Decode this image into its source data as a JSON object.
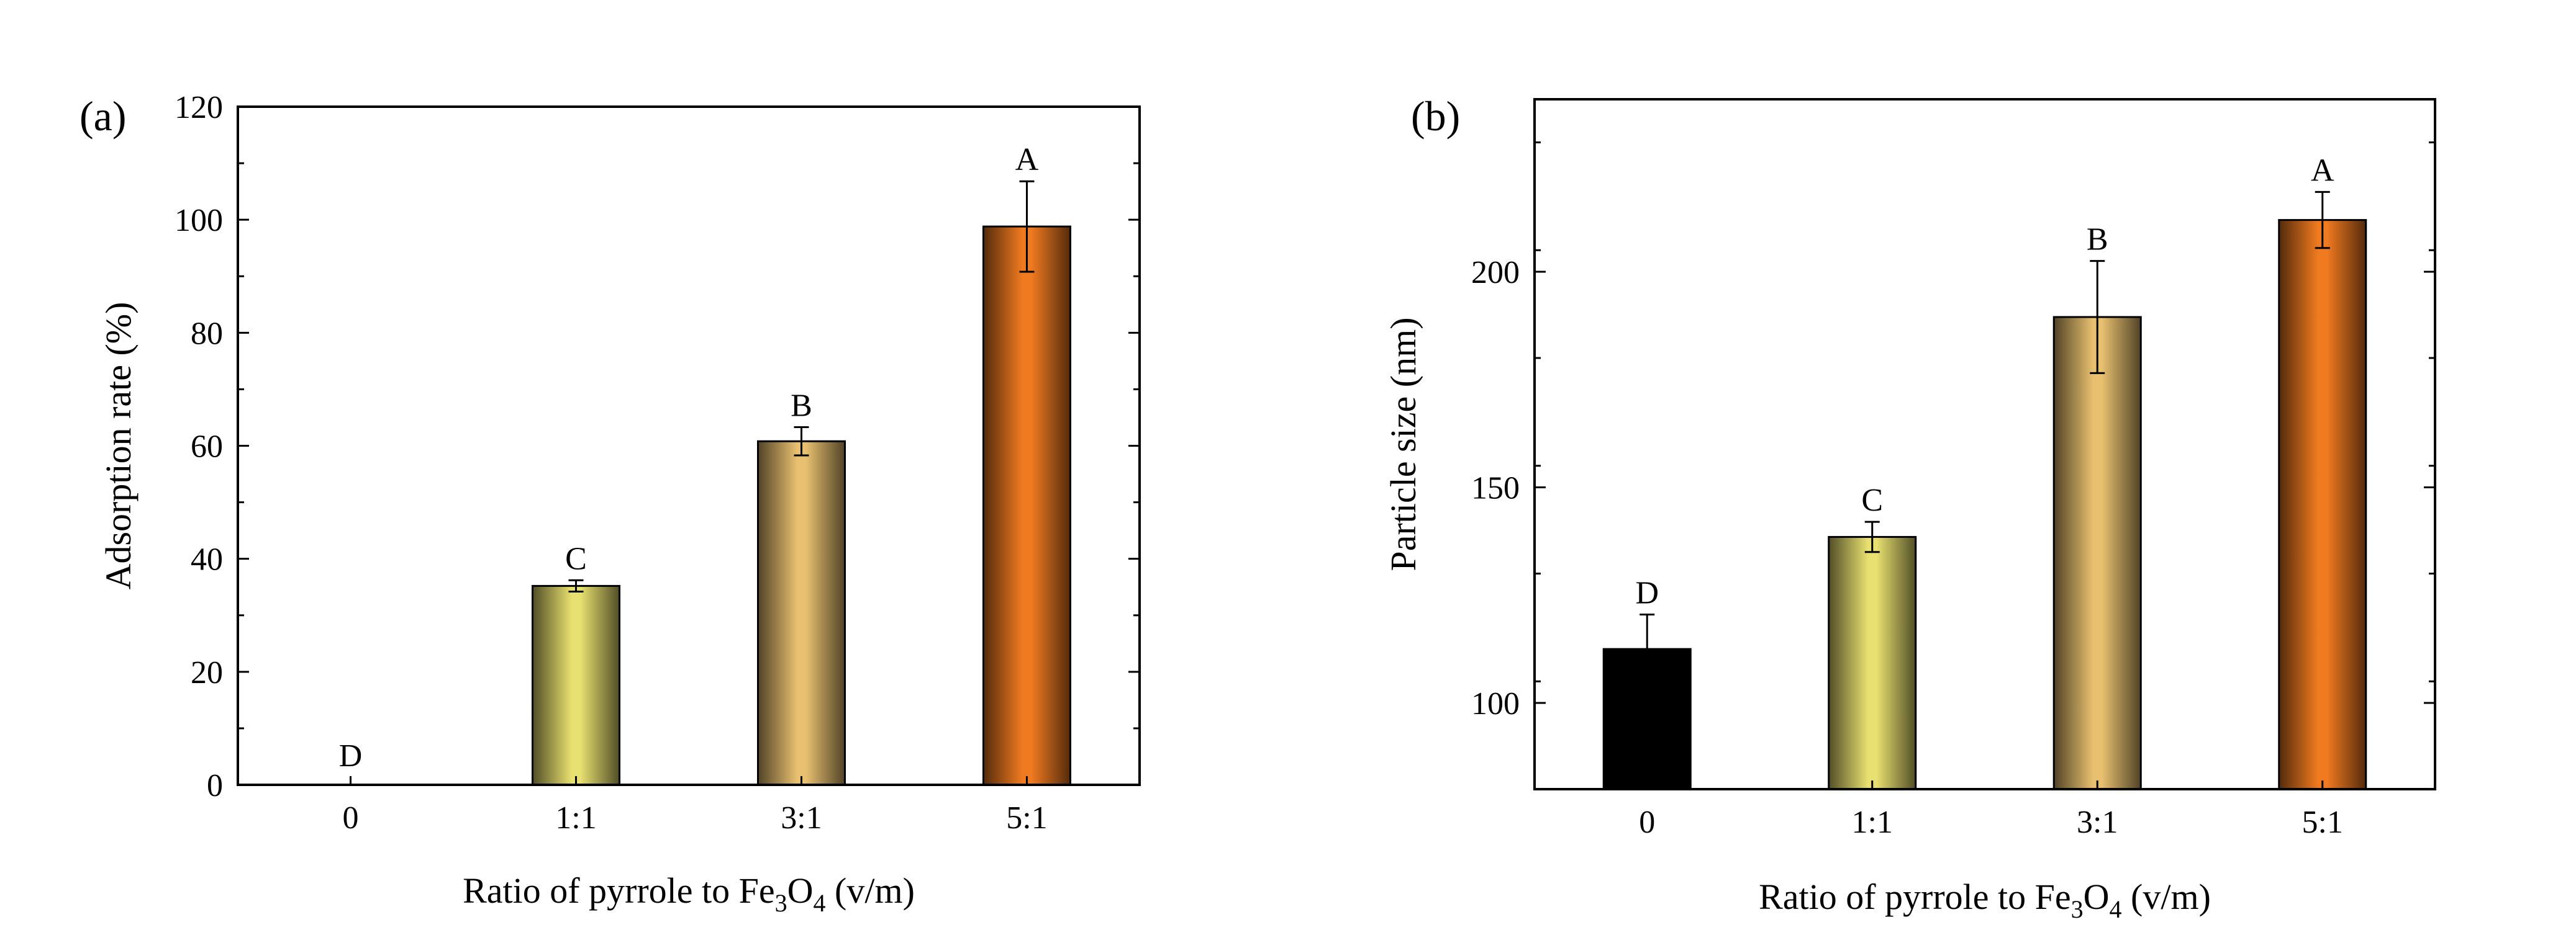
{
  "chart_data": [
    {
      "type": "bar",
      "panel_label": "(a)",
      "title": "",
      "categories": [
        "0",
        "1:1",
        "3:1",
        "5:1"
      ],
      "values": [
        0,
        35.2,
        60.8,
        98.8
      ],
      "errors": [
        0,
        1.0,
        2.5,
        8.0
      ],
      "letters": [
        "D",
        "C",
        "B",
        "A"
      ],
      "colors": [
        "#000000",
        "#e8e070",
        "#e8c070",
        "#f07a20"
      ],
      "xlabel_main": "Ratio of pyrrole to Fe",
      "xlabel_sub1": "3",
      "xlabel_mid": "O",
      "xlabel_sub2": "4",
      "xlabel_tail": " (v/m)",
      "ylabel": "Adsorption rate (%)",
      "ylim": [
        0,
        120
      ],
      "yticks": [
        0,
        20,
        40,
        60,
        80,
        100,
        120
      ],
      "grid": false
    },
    {
      "type": "bar",
      "panel_label": "(b)",
      "title": "",
      "categories": [
        "0",
        "1:1",
        "3:1",
        "5:1"
      ],
      "values": [
        112.5,
        138.5,
        189.5,
        212
      ],
      "errors": [
        8,
        3.5,
        13,
        6.5
      ],
      "letters": [
        "D",
        "C",
        "B",
        "A"
      ],
      "colors": [
        "#000000",
        "#e8e070",
        "#e8c070",
        "#f07a20"
      ],
      "xlabel_main": "Ratio of pyrrole to Fe",
      "xlabel_sub1": "3",
      "xlabel_mid": "O",
      "xlabel_sub2": "4",
      "xlabel_tail": " (v/m)",
      "ylabel": "Particle size (nm)",
      "ylim": [
        80,
        240
      ],
      "yticks": [
        100,
        150,
        200
      ],
      "grid": false
    }
  ]
}
